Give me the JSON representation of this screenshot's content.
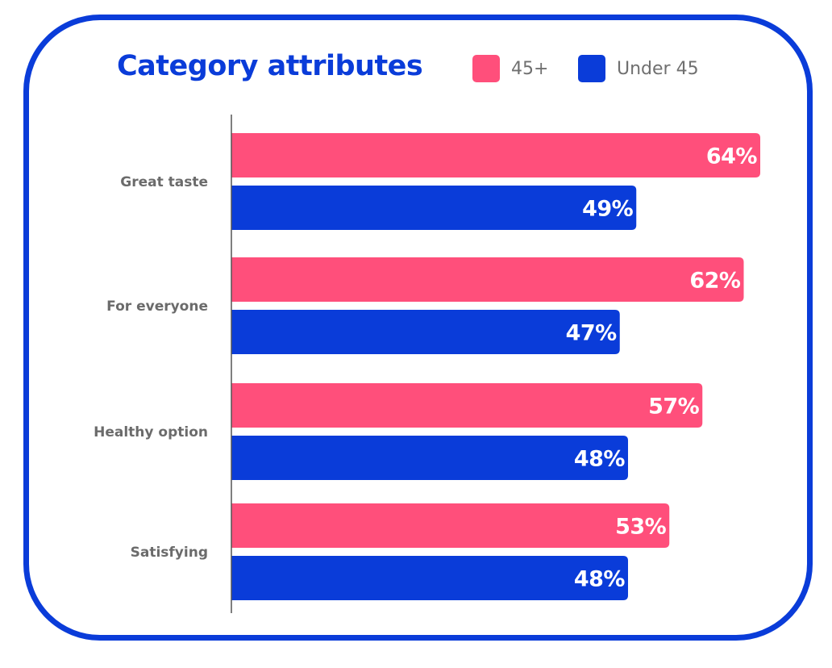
{
  "colors": {
    "series_45_plus": "#ff4f7b",
    "series_under_45": "#0a3cd9",
    "frame": "#0a3cd9",
    "axis": "#555555"
  },
  "legend": [
    {
      "name": "45+"
    },
    {
      "name": "Under 45"
    }
  ],
  "chart_data": {
    "type": "bar",
    "orientation": "horizontal",
    "title": "Category attributes",
    "categories": [
      "Great taste",
      "For everyone",
      "Healthy option",
      "Satisfying"
    ],
    "series": [
      {
        "name": "45+",
        "values": [
          64,
          62,
          57,
          53
        ],
        "labels": [
          "64%",
          "62%",
          "57%",
          "53%"
        ]
      },
      {
        "name": "Under 45",
        "values": [
          49,
          47,
          48,
          48
        ],
        "labels": [
          "49%",
          "47%",
          "48%",
          "48%"
        ]
      }
    ],
    "unit": "%",
    "xlim": [
      0,
      100
    ],
    "grid": false,
    "legend_position": "top-right"
  }
}
